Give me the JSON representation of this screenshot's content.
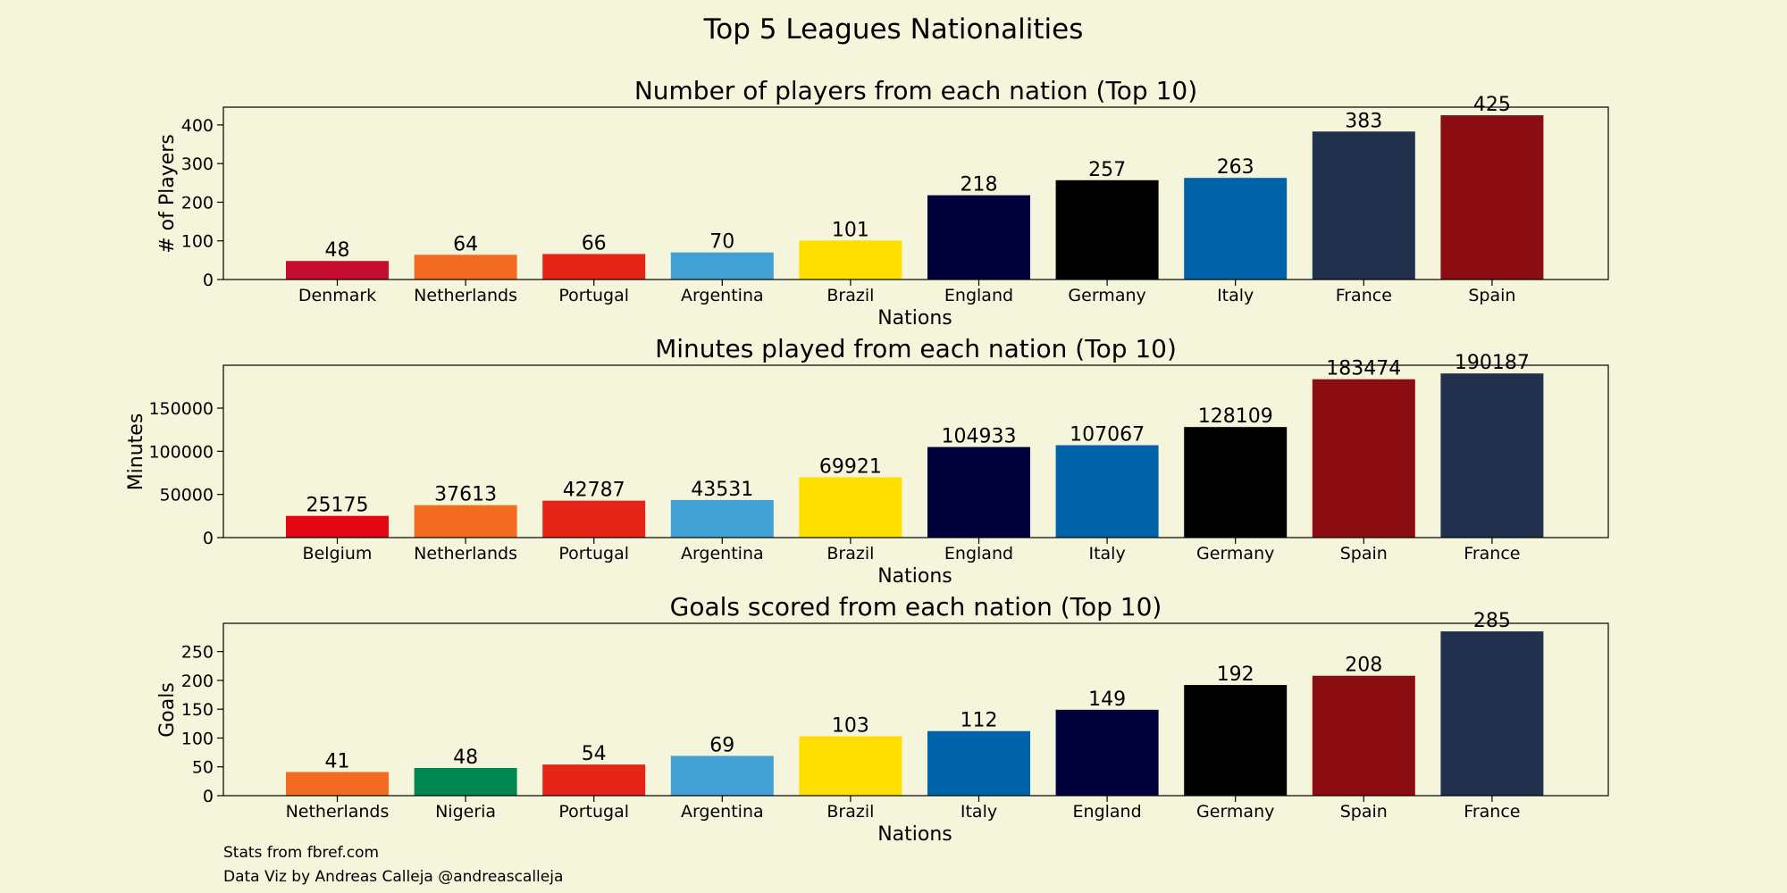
{
  "figure": {
    "suptitle": "Top 5 Leagues Nationalities",
    "credits": [
      "Stats from fbref.com",
      "Data Viz by Andreas Calleja @andreascalleja"
    ]
  },
  "chart_data": [
    {
      "type": "bar",
      "title": "Number of players from each nation (Top 10)",
      "xlabel": "Nations",
      "ylabel": "# of Players",
      "ylim": [
        0,
        446
      ],
      "yticks": [
        0,
        100,
        200,
        300,
        400
      ],
      "categories": [
        "Denmark",
        "Netherlands",
        "Portugal",
        "Argentina",
        "Brazil",
        "England",
        "Germany",
        "Italy",
        "France",
        "Spain"
      ],
      "values": [
        48,
        64,
        66,
        70,
        101,
        218,
        257,
        263,
        383,
        425
      ],
      "colors": [
        "#c60c30",
        "#f36c21",
        "#e42518",
        "#43a1d5",
        "#fedf00",
        "#00003c",
        "#000000",
        "#0064aa",
        "#21304d",
        "#8b0d11"
      ]
    },
    {
      "type": "bar",
      "title": "Minutes played from each nation (Top 10)",
      "xlabel": "Nations",
      "ylabel": "Minutes",
      "ylim": [
        0,
        199696
      ],
      "yticks": [
        0,
        50000,
        100000,
        150000
      ],
      "categories": [
        "Belgium",
        "Netherlands",
        "Portugal",
        "Argentina",
        "Brazil",
        "England",
        "Italy",
        "Germany",
        "Spain",
        "France"
      ],
      "values": [
        25175,
        37613,
        42787,
        43531,
        69921,
        104933,
        107067,
        128109,
        183474,
        190187
      ],
      "colors": [
        "#e30613",
        "#f36c21",
        "#e42518",
        "#43a1d5",
        "#fedf00",
        "#00003c",
        "#0064aa",
        "#000000",
        "#8b0d11",
        "#21304d"
      ]
    },
    {
      "type": "bar",
      "title": "Goals scored from each nation (Top 10)",
      "xlabel": "Nations",
      "ylabel": "Goals",
      "ylim": [
        0,
        299
      ],
      "yticks": [
        0,
        50,
        100,
        150,
        200,
        250
      ],
      "categories": [
        "Netherlands",
        "Nigeria",
        "Portugal",
        "Argentina",
        "Brazil",
        "Italy",
        "England",
        "Germany",
        "Spain",
        "France"
      ],
      "values": [
        41,
        48,
        54,
        69,
        103,
        112,
        149,
        192,
        208,
        285
      ],
      "colors": [
        "#f36c21",
        "#008751",
        "#e42518",
        "#43a1d5",
        "#fedf00",
        "#0064aa",
        "#00003c",
        "#000000",
        "#8b0d11",
        "#21304d"
      ]
    }
  ]
}
